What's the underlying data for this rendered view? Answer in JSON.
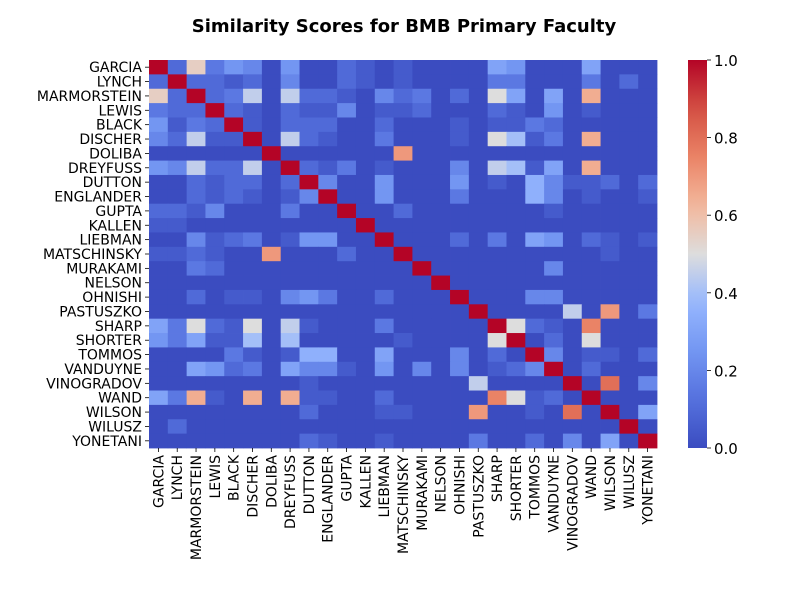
{
  "chart_data": {
    "type": "heatmap",
    "title": "Similarity Scores for BMB Primary Faculty",
    "xlabel": "",
    "ylabel": "",
    "labels": [
      "GARCIA",
      "LYNCH",
      "MARMORSTEIN",
      "LEWIS",
      "BLACK",
      "DISCHER",
      "DOLIBA",
      "DREYFUSS",
      "DUTTON",
      "ENGLANDER",
      "GUPTA",
      "KALLEN",
      "LIEBMAN",
      "MATSCHINSKY",
      "MURAKAMI",
      "NELSON",
      "OHNISHI",
      "PASTUSZKO",
      "SHARP",
      "SHORTER",
      "TOMMOS",
      "VANDUYNE",
      "VINOGRADOV",
      "WAND",
      "WILSON",
      "WILUSZ",
      "YONETANI"
    ],
    "values": [
      [
        1.0,
        0.1,
        0.55,
        0.15,
        0.25,
        0.2,
        0.0,
        0.25,
        0.0,
        0.0,
        0.1,
        0.05,
        0.0,
        0.05,
        0.0,
        0.0,
        0.0,
        0.0,
        0.3,
        0.25,
        0.0,
        0.0,
        0.0,
        0.3,
        0.0,
        0.0,
        0.0
      ],
      [
        0.1,
        1.0,
        0.1,
        0.1,
        0.05,
        0.1,
        0.0,
        0.2,
        0.0,
        0.0,
        0.1,
        0.05,
        0.0,
        0.05,
        0.0,
        0.0,
        0.0,
        0.0,
        0.15,
        0.15,
        0.0,
        0.0,
        0.0,
        0.15,
        0.0,
        0.1,
        0.0
      ],
      [
        0.55,
        0.1,
        1.0,
        0.1,
        0.15,
        0.45,
        0.0,
        0.45,
        0.1,
        0.1,
        0.05,
        0.0,
        0.2,
        0.1,
        0.15,
        0.0,
        0.1,
        0.0,
        0.5,
        0.3,
        0.0,
        0.3,
        0.0,
        0.65,
        0.0,
        0.0,
        0.0
      ],
      [
        0.15,
        0.1,
        0.1,
        1.0,
        0.1,
        0.05,
        0.0,
        0.1,
        0.05,
        0.05,
        0.2,
        0.0,
        0.05,
        0.05,
        0.1,
        0.0,
        0.0,
        0.0,
        0.1,
        0.05,
        0.0,
        0.25,
        0.0,
        0.05,
        0.0,
        0.0,
        0.0
      ],
      [
        0.25,
        0.05,
        0.15,
        0.1,
        1.0,
        0.05,
        0.0,
        0.1,
        0.1,
        0.1,
        0.0,
        0.0,
        0.1,
        0.0,
        0.0,
        0.0,
        0.05,
        0.0,
        0.05,
        0.05,
        0.15,
        0.1,
        0.0,
        0.0,
        0.0,
        0.0,
        0.0
      ],
      [
        0.2,
        0.1,
        0.45,
        0.05,
        0.05,
        1.0,
        0.0,
        0.45,
        0.1,
        0.05,
        0.0,
        0.0,
        0.15,
        0.0,
        0.0,
        0.0,
        0.05,
        0.0,
        0.5,
        0.4,
        0.05,
        0.15,
        0.0,
        0.65,
        0.0,
        0.0,
        0.0
      ],
      [
        0.0,
        0.0,
        0.0,
        0.0,
        0.0,
        0.0,
        1.0,
        0.0,
        0.0,
        0.0,
        0.0,
        0.0,
        0.0,
        0.7,
        0.0,
        0.0,
        0.0,
        0.0,
        0.0,
        0.0,
        0.0,
        0.0,
        0.0,
        0.0,
        0.0,
        0.0,
        0.0
      ],
      [
        0.25,
        0.2,
        0.45,
        0.1,
        0.1,
        0.45,
        0.0,
        1.0,
        0.1,
        0.05,
        0.15,
        0.0,
        0.05,
        0.0,
        0.0,
        0.0,
        0.2,
        0.0,
        0.45,
        0.4,
        0.05,
        0.3,
        0.0,
        0.65,
        0.0,
        0.0,
        0.0
      ],
      [
        0.0,
        0.0,
        0.1,
        0.05,
        0.1,
        0.1,
        0.0,
        0.1,
        1.0,
        0.2,
        0.0,
        0.0,
        0.25,
        0.0,
        0.0,
        0.0,
        0.25,
        0.0,
        0.05,
        0.0,
        0.35,
        0.2,
        0.05,
        0.05,
        0.1,
        0.0,
        0.1
      ],
      [
        0.0,
        0.0,
        0.1,
        0.05,
        0.1,
        0.05,
        0.0,
        0.05,
        0.2,
        1.0,
        0.0,
        0.0,
        0.25,
        0.0,
        0.0,
        0.0,
        0.15,
        0.0,
        0.0,
        0.0,
        0.35,
        0.2,
        0.0,
        0.05,
        0.0,
        0.0,
        0.05
      ],
      [
        0.1,
        0.1,
        0.05,
        0.2,
        0.0,
        0.0,
        0.0,
        0.15,
        0.0,
        0.0,
        1.0,
        0.0,
        0.0,
        0.1,
        0.0,
        0.0,
        0.0,
        0.0,
        0.0,
        0.0,
        0.0,
        0.05,
        0.0,
        0.0,
        0.0,
        0.0,
        0.0
      ],
      [
        0.05,
        0.05,
        0.0,
        0.0,
        0.0,
        0.0,
        0.0,
        0.0,
        0.0,
        0.0,
        0.0,
        1.0,
        0.0,
        0.0,
        0.0,
        0.0,
        0.0,
        0.0,
        0.0,
        0.0,
        0.0,
        0.0,
        0.0,
        0.0,
        0.0,
        0.0,
        0.0
      ],
      [
        0.0,
        0.0,
        0.2,
        0.05,
        0.1,
        0.15,
        0.0,
        0.05,
        0.25,
        0.25,
        0.0,
        0.0,
        1.0,
        0.0,
        0.0,
        0.0,
        0.1,
        0.0,
        0.15,
        0.0,
        0.3,
        0.25,
        0.0,
        0.1,
        0.05,
        0.0,
        0.05
      ],
      [
        0.05,
        0.05,
        0.1,
        0.05,
        0.0,
        0.0,
        0.7,
        0.0,
        0.0,
        0.0,
        0.1,
        0.0,
        0.0,
        1.0,
        0.0,
        0.0,
        0.0,
        0.0,
        0.0,
        0.0,
        0.0,
        0.0,
        0.0,
        0.0,
        0.05,
        0.0,
        0.0
      ],
      [
        0.0,
        0.0,
        0.15,
        0.1,
        0.0,
        0.0,
        0.0,
        0.0,
        0.0,
        0.0,
        0.0,
        0.0,
        0.0,
        0.0,
        1.0,
        0.0,
        0.0,
        0.0,
        0.0,
        0.0,
        0.0,
        0.2,
        0.0,
        0.0,
        0.0,
        0.0,
        0.0
      ],
      [
        0.0,
        0.0,
        0.0,
        0.0,
        0.0,
        0.0,
        0.0,
        0.0,
        0.0,
        0.0,
        0.0,
        0.0,
        0.0,
        0.0,
        0.0,
        1.0,
        0.0,
        0.0,
        0.0,
        0.0,
        0.0,
        0.0,
        0.0,
        0.0,
        0.0,
        0.0,
        0.0
      ],
      [
        0.0,
        0.0,
        0.1,
        0.0,
        0.05,
        0.05,
        0.0,
        0.2,
        0.25,
        0.15,
        0.0,
        0.0,
        0.1,
        0.0,
        0.0,
        0.0,
        1.0,
        0.0,
        0.0,
        0.0,
        0.2,
        0.2,
        0.0,
        0.0,
        0.0,
        0.0,
        0.0
      ],
      [
        0.0,
        0.0,
        0.0,
        0.0,
        0.0,
        0.0,
        0.0,
        0.0,
        0.0,
        0.0,
        0.0,
        0.0,
        0.0,
        0.0,
        0.0,
        0.0,
        0.0,
        1.0,
        0.0,
        0.0,
        0.0,
        0.0,
        0.45,
        0.0,
        0.7,
        0.0,
        0.15
      ],
      [
        0.3,
        0.15,
        0.5,
        0.1,
        0.05,
        0.5,
        0.0,
        0.45,
        0.05,
        0.0,
        0.0,
        0.0,
        0.15,
        0.0,
        0.0,
        0.0,
        0.0,
        0.0,
        1.0,
        0.5,
        0.1,
        0.05,
        0.0,
        0.75,
        0.0,
        0.0,
        0.0
      ],
      [
        0.25,
        0.15,
        0.3,
        0.05,
        0.05,
        0.4,
        0.0,
        0.4,
        0.0,
        0.0,
        0.0,
        0.0,
        0.0,
        0.05,
        0.0,
        0.0,
        0.0,
        0.0,
        0.5,
        1.0,
        0.0,
        0.1,
        0.0,
        0.5,
        0.0,
        0.0,
        0.0
      ],
      [
        0.0,
        0.0,
        0.0,
        0.0,
        0.15,
        0.05,
        0.0,
        0.05,
        0.35,
        0.35,
        0.0,
        0.0,
        0.3,
        0.0,
        0.0,
        0.0,
        0.2,
        0.0,
        0.1,
        0.0,
        1.0,
        0.2,
        0.0,
        0.05,
        0.05,
        0.0,
        0.1
      ],
      [
        0.0,
        0.0,
        0.3,
        0.25,
        0.1,
        0.15,
        0.0,
        0.3,
        0.2,
        0.2,
        0.05,
        0.0,
        0.25,
        0.0,
        0.2,
        0.0,
        0.2,
        0.0,
        0.05,
        0.1,
        0.2,
        1.0,
        0.0,
        0.1,
        0.0,
        0.0,
        0.0
      ],
      [
        0.0,
        0.0,
        0.0,
        0.0,
        0.0,
        0.0,
        0.0,
        0.0,
        0.05,
        0.0,
        0.0,
        0.0,
        0.0,
        0.0,
        0.0,
        0.0,
        0.0,
        0.45,
        0.0,
        0.0,
        0.0,
        0.0,
        1.0,
        0.0,
        0.8,
        0.0,
        0.2
      ],
      [
        0.3,
        0.15,
        0.65,
        0.05,
        0.0,
        0.65,
        0.0,
        0.65,
        0.05,
        0.05,
        0.0,
        0.0,
        0.1,
        0.0,
        0.0,
        0.0,
        0.0,
        0.0,
        0.75,
        0.5,
        0.05,
        0.1,
        0.0,
        1.0,
        0.0,
        0.0,
        0.0
      ],
      [
        0.0,
        0.0,
        0.0,
        0.0,
        0.0,
        0.0,
        0.0,
        0.0,
        0.1,
        0.0,
        0.0,
        0.0,
        0.05,
        0.05,
        0.0,
        0.0,
        0.0,
        0.7,
        0.0,
        0.0,
        0.05,
        0.0,
        0.8,
        0.0,
        1.0,
        0.0,
        0.3
      ],
      [
        0.0,
        0.1,
        0.0,
        0.0,
        0.0,
        0.0,
        0.0,
        0.0,
        0.0,
        0.0,
        0.0,
        0.0,
        0.0,
        0.0,
        0.0,
        0.0,
        0.0,
        0.0,
        0.0,
        0.0,
        0.0,
        0.0,
        0.0,
        0.0,
        0.0,
        1.0,
        0.0
      ],
      [
        0.0,
        0.0,
        0.0,
        0.0,
        0.0,
        0.0,
        0.0,
        0.0,
        0.1,
        0.05,
        0.0,
        0.0,
        0.05,
        0.0,
        0.0,
        0.0,
        0.0,
        0.15,
        0.0,
        0.0,
        0.1,
        0.0,
        0.2,
        0.0,
        0.3,
        0.0,
        1.0
      ]
    ],
    "vmin": 0.0,
    "vmax": 1.0,
    "colormap": "coolwarm",
    "colorbar_ticks": [
      "0.0",
      "0.2",
      "0.4",
      "0.6",
      "0.8",
      "1.0"
    ],
    "colorbar_tick_values": [
      0.0,
      0.2,
      0.4,
      0.6,
      0.8,
      1.0
    ],
    "grid": false,
    "legend": "colorbar-right"
  }
}
